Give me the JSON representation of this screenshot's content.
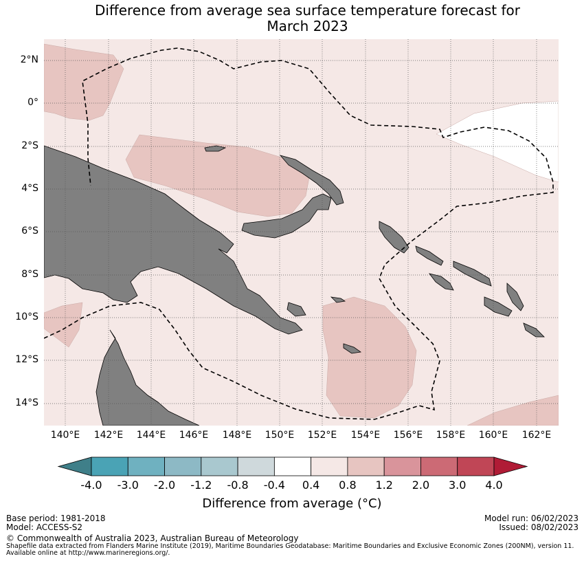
{
  "title_line1": "Difference from average sea surface temperature forecast for",
  "title_line2": "March 2023",
  "map": {
    "lat_ticks": [
      "2°N",
      "0°",
      "2°S",
      "4°S",
      "6°S",
      "8°S",
      "10°S",
      "12°S",
      "14°S"
    ],
    "lon_ticks": [
      "140°E",
      "142°E",
      "144°E",
      "146°E",
      "148°E",
      "150°E",
      "152°E",
      "154°E",
      "156°E",
      "158°E",
      "160°E",
      "162°E"
    ],
    "land_color": "#808080",
    "ocean_base_color": "#f5e8e6",
    "boundary_style": "dashed"
  },
  "colorbar": {
    "ticks": [
      "-4.0",
      "-3.0",
      "-2.0",
      "-1.2",
      "-0.8",
      "-0.4",
      "0.4",
      "0.8",
      "1.2",
      "2.0",
      "3.0",
      "4.0"
    ],
    "colors": [
      "#3f7f89",
      "#4aa3b5",
      "#6fb1c0",
      "#8db9c5",
      "#a9c8cf",
      "#cfd9dc",
      "#ffffff",
      "#f5e8e6",
      "#e7c5c1",
      "#d9949b",
      "#cc6a75",
      "#c04656",
      "#b01c36"
    ],
    "label": "Difference from average (°C)"
  },
  "footer": {
    "base_period": "Base period: 1981-2018",
    "model": "Model: ACCESS-S2",
    "model_run": "Model run: 06/02/2023",
    "issued": "Issued: 08/02/2023",
    "copyright": "© Commonwealth of Australia 2023, Australian Bureau of Meteorology",
    "shapefile_line1": "Shapefile data extracted from Flanders Marine Institute (2019), Maritime Boundaries Geodatabase: Maritime Boundaries and Exclusive Economic Zones (200NM), version 11.",
    "shapefile_line2": "Available online at http://www.marineregions.org/."
  }
}
